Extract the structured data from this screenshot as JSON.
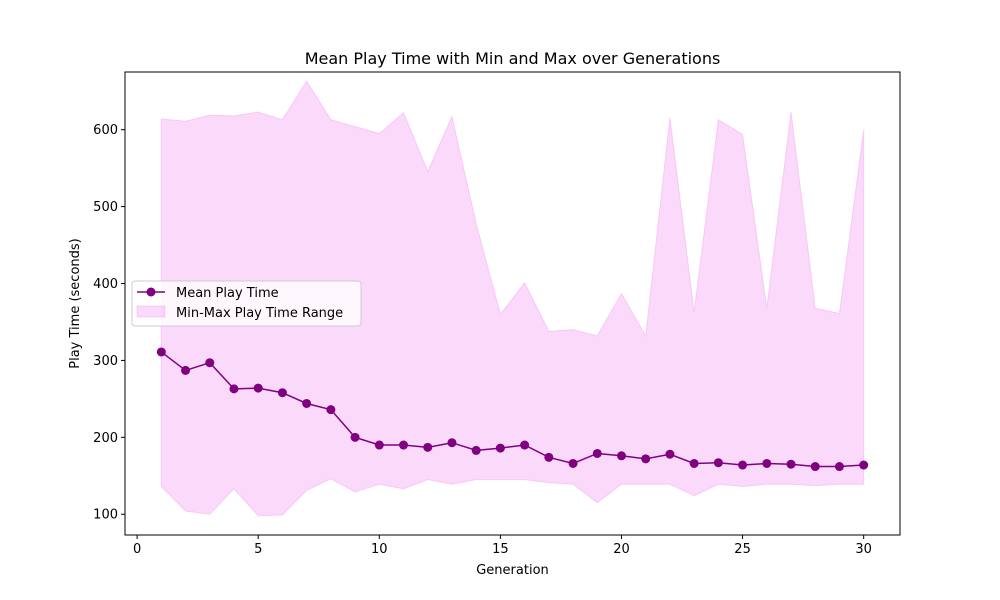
{
  "chart_data": {
    "type": "line",
    "title": "Mean Play Time with Min and Max over Generations",
    "xlabel": "Generation",
    "ylabel": "Play Time (seconds)",
    "xlim": [
      -0.5,
      31.5
    ],
    "ylim": [
      73,
      675
    ],
    "xticks": [
      0,
      5,
      10,
      15,
      20,
      25,
      30
    ],
    "yticks": [
      100,
      200,
      300,
      400,
      500,
      600
    ],
    "grid": false,
    "legend_position": "center-left",
    "x": [
      1,
      2,
      3,
      4,
      5,
      6,
      7,
      8,
      9,
      10,
      11,
      12,
      13,
      14,
      15,
      16,
      17,
      18,
      19,
      20,
      21,
      22,
      23,
      24,
      25,
      26,
      27,
      28,
      29,
      30
    ],
    "series": [
      {
        "name": "Mean Play Time",
        "kind": "line-marker",
        "color": "#800080",
        "values": [
          311,
          287,
          297,
          263,
          264,
          258,
          244,
          236,
          200,
          190,
          190,
          187,
          193,
          183,
          186,
          190,
          174,
          166,
          179,
          176,
          172,
          178,
          166,
          167,
          164,
          166,
          165,
          162,
          162,
          164
        ]
      },
      {
        "name": "Min-Max Play Time Range",
        "kind": "fill-between",
        "color": "#ee82ee",
        "min": [
          136,
          104,
          100,
          133,
          98,
          99,
          131,
          146,
          129,
          139,
          133,
          145,
          139,
          145,
          145,
          145,
          141,
          139,
          115,
          139,
          139,
          139,
          124,
          139,
          136,
          139,
          139,
          137,
          139,
          139
        ],
        "max": [
          614,
          611,
          619,
          618,
          623,
          613,
          663,
          613,
          604,
          595,
          622,
          546,
          617,
          478,
          360,
          401,
          338,
          340,
          332,
          387,
          332,
          616,
          363,
          613,
          594,
          368,
          623,
          368,
          361,
          600
        ]
      }
    ]
  }
}
